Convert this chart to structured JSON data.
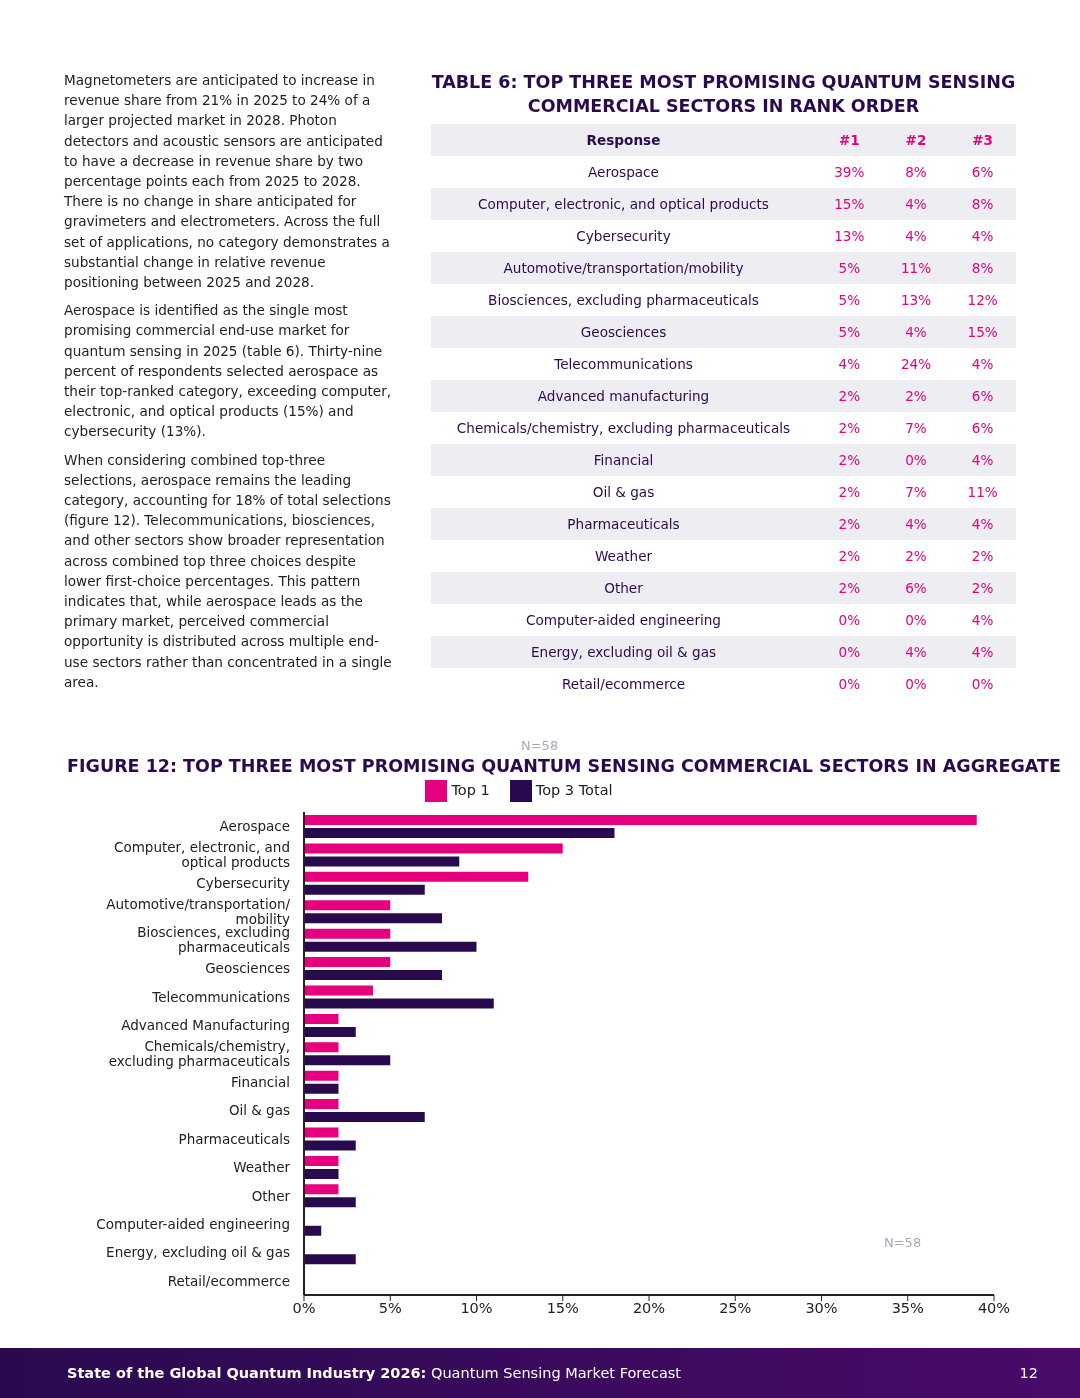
{
  "chart_data": [
    {
      "type": "other",
      "annotations": [
        "Magnetometers are anticipated to increase in revenue share from 21% in 2025 to 24% of a larger projected market in 2028. Photon detectors and acoustic sensors are anticipated to have a decrease in revenue share by two percentage points each from 2025 to 2028. There is no change in share anticipated for gravimeters and electrometers. Across the full set of applications, no category demonstrates a substantial change in relative revenue positioning between 2025 and 2028.",
        "Aerospace is identified as the single most promising commercial end-use market for quantum sensing in 2025 (table 6). Thirty-nine percent of respondents selected aerospace as their top-ranked category, exceeding computer, electronic, and optical products (15%) and cybersecurity (13%).",
        "When considering combined top-three selections, aerospace remains the leading category, accounting for 18% of total selections (figure 12). Telecommunications, biosciences, and other sectors show broader representation across combined top three choices despite lower first-choice percentages. This pattern indicates that, while aerospace leads as the primary market, perceived commercial opportunity is distributed across multiple end-use sectors rather than concentrated in a single area."
      ]
    },
    {
      "type": "other",
      "title": "TABLE 6: TOP THREE MOST PROMISING QUANTUM SENSING COMMERCIAL SECTORS IN RANK ORDER",
      "ylabel": "Response",
      "categories": [
        "Aerospace",
        "Computer, electronic, and optical products",
        "Cybersecurity",
        "Automotive/transportation/mobility",
        "Biosciences, excluding pharmaceuticals",
        "Geosciences",
        "Telecommunications",
        "Advanced manufacturing",
        "Chemicals/chemistry, excluding pharmaceuticals",
        "Financial",
        "Oil & gas",
        "Pharmaceuticals",
        "Weather",
        "Other",
        "Computer-aided engineering",
        "Energy, excluding oil & gas",
        "Retail/ecommerce"
      ],
      "series": [
        {
          "name": "#1",
          "values": [
            39,
            15,
            13,
            5,
            5,
            5,
            4,
            2,
            2,
            2,
            2,
            2,
            2,
            2,
            0,
            0,
            0
          ],
          "value_labels": [
            "39%",
            "15%",
            "13%",
            "5%",
            "5%",
            "5%",
            "4%",
            "2%",
            "2%",
            "2%",
            "2%",
            "2%",
            "2%",
            "2%",
            "0%",
            "0%",
            "0%"
          ]
        },
        {
          "name": "#2",
          "values": [
            8,
            4,
            4,
            11,
            13,
            4,
            24,
            2,
            7,
            0,
            7,
            4,
            2,
            6,
            0,
            4,
            0
          ],
          "value_labels": [
            "8%",
            "4%",
            "4%",
            "11%",
            "13%",
            "4%",
            "24%",
            "2%",
            "7%",
            "0%",
            "7%",
            "4%",
            "2%",
            "6%",
            "0%",
            "4%",
            "0%"
          ]
        },
        {
          "name": "#3",
          "values": [
            6,
            8,
            4,
            8,
            12,
            15,
            4,
            6,
            6,
            4,
            11,
            4,
            2,
            2,
            4,
            4,
            0
          ],
          "value_labels": [
            "6%",
            "8%",
            "4%",
            "8%",
            "12%",
            "15%",
            "4%",
            "6%",
            "6%",
            "4%",
            "11%",
            "4%",
            "2%",
            "2%",
            "4%",
            "4%",
            "0%"
          ]
        }
      ],
      "annotations": [
        "N=58"
      ]
    },
    {
      "type": "bar",
      "orientation": "horizontal",
      "title": "FIGURE 12: TOP THREE MOST PROMISING QUANTUM SENSING COMMERCIAL SECTORS IN AGGREGATE",
      "categories": [
        "Aerospace",
        "Computer, electronic, and optical products",
        "Cybersecurity",
        "Automotive/transportation/ mobility",
        "Biosciences, excluding pharmaceuticals",
        "Geosciences",
        "Telecommunications",
        "Advanced Manufacturing",
        "Chemicals/chemistry, excluding pharmaceuticals",
        "Financial",
        "Oil & gas",
        "Pharmaceuticals",
        "Weather",
        "Other",
        "Computer-aided engineering",
        "Energy, excluding oil & gas",
        "Retail/ecommerce"
      ],
      "series": [
        {
          "name": "Top 1",
          "color": "#e6007e",
          "values": [
            39,
            15,
            13,
            5,
            5,
            5,
            4,
            2,
            2,
            2,
            2,
            2,
            2,
            2,
            0,
            0,
            0
          ]
        },
        {
          "name": "Top 3 Total",
          "color": "#2a0a4f",
          "values": [
            18,
            9,
            7,
            8,
            10,
            8,
            11,
            3,
            5,
            2,
            7,
            3,
            2,
            3,
            1,
            3,
            0
          ]
        }
      ],
      "xlim": [
        0,
        40
      ],
      "xticks": [
        {
          "value": 0,
          "label": "0%"
        },
        {
          "value": 5,
          "label": "5%"
        },
        {
          "value": 10,
          "label": "10%"
        },
        {
          "value": 15,
          "label": "15%"
        },
        {
          "value": 20,
          "label": "20%"
        },
        {
          "value": 25,
          "label": "25%"
        },
        {
          "value": 30,
          "label": "30%"
        },
        {
          "value": 35,
          "label": "35%"
        },
        {
          "value": 40,
          "label": "40%"
        }
      ],
      "grid": false,
      "legend": "top",
      "annotations": [
        "N=58",
        "State of the Global Quantum Industry 2026:",
        "Quantum Sensing Market Forecast",
        "12"
      ]
    }
  ]
}
